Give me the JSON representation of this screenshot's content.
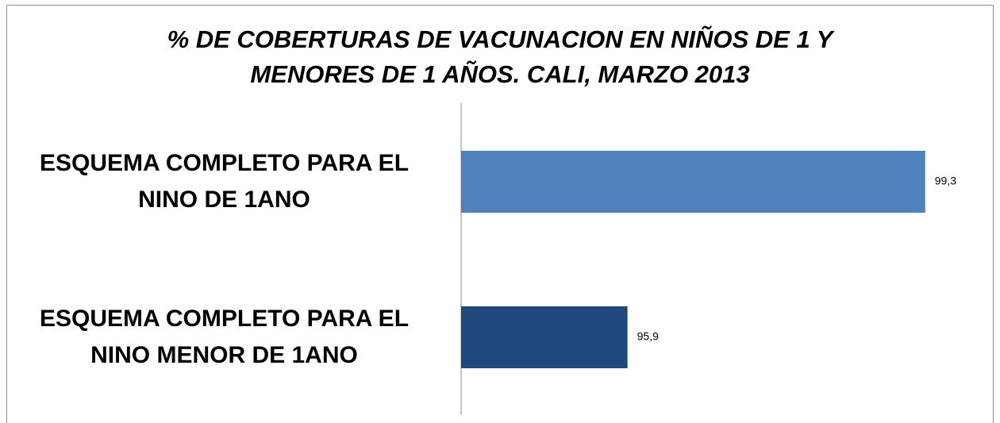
{
  "chart_data": {
    "type": "barh",
    "title": "% DE COBERTURAS DE VACUNACION EN NIÑOS DE 1 Y MENORES DE 1 AÑOS. CALI, MARZO 2013",
    "categories": [
      "ESQUEMA COMPLETO PARA EL NINO DE 1ANO",
      "ESQUEMA COMPLETO PARA EL NINO MENOR DE 1ANO"
    ],
    "values": [
      99.3,
      95.9
    ],
    "value_labels": [
      "99,3",
      "95,9"
    ],
    "colors": [
      "#4f81bd",
      "#1f497d"
    ],
    "xlim": [
      94,
      100
    ]
  }
}
